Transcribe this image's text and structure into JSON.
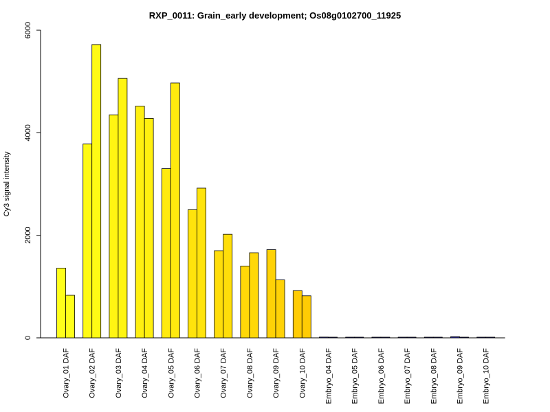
{
  "chart_data": {
    "type": "bar",
    "title": "RXP_0011: Grain_early development; Os08g0102700_11925",
    "xlabel": "",
    "ylabel": "Cy3 signal intensity",
    "ylim": [
      0,
      6000
    ],
    "yticks": [
      0,
      2000,
      4000,
      6000
    ],
    "grid": false,
    "categories": [
      "Ovary_01 DAF",
      "Ovary_02 DAF",
      "Ovary_03 DAF",
      "Ovary_04 DAF",
      "Ovary_05 DAF",
      "Ovary_06 DAF",
      "Ovary_07 DAF",
      "Ovary_08 DAF",
      "Ovary_09 DAF",
      "Ovary_10 DAF",
      "Embryo_04 DAF",
      "Embryo_05 DAF",
      "Embryo_06 DAF",
      "Embryo_07 DAF",
      "Embryo_08 DAF",
      "Embryo_09 DAF",
      "Embryo_10 DAF"
    ],
    "series": [
      {
        "values": [
          1360,
          3780,
          4350,
          4520,
          3300,
          2500,
          1700,
          1400,
          1720,
          920,
          15,
          10,
          12,
          8,
          10,
          22,
          12
        ]
      },
      {
        "values": [
          830,
          5720,
          5060,
          4280,
          4970,
          2920,
          2020,
          1660,
          1130,
          820,
          8,
          5,
          6,
          5,
          6,
          10,
          6
        ]
      }
    ],
    "bar_colors": [
      "#ffff1a",
      "#fffa14",
      "#fff512",
      "#fff010",
      "#ffea0e",
      "#ffe40c",
      "#ffde0a",
      "#ffd808",
      "#ffd206",
      "#ffcc04",
      "#3a3aa8",
      "#3a3aa8",
      "#3a3aa8",
      "#3a3aa8",
      "#3a3aa8",
      "#2a2aa0",
      "#3a3aa8"
    ]
  }
}
